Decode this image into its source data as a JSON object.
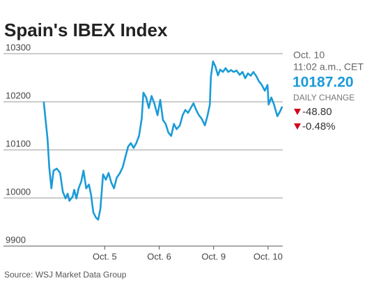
{
  "chart_data": {
    "type": "line",
    "title": "Spain's IBEX Index",
    "source": "Source: WSJ Market Data Group",
    "color": "#1a9bd7",
    "grid": true,
    "ylim": [
      9900,
      10300
    ],
    "yticks": [
      9900,
      10000,
      10100,
      10200,
      10300
    ],
    "xlim": [
      -0.86,
      4.27
    ],
    "xticks": [
      {
        "value": 1,
        "label": "Oct. 5"
      },
      {
        "value": 2,
        "label": "Oct. 6"
      },
      {
        "value": 3,
        "label": "Oct. 9"
      },
      {
        "value": 4,
        "label": "Oct. 10"
      }
    ],
    "x": [
      -0.12,
      -0.05,
      -0.02,
      0.02,
      0.06,
      0.12,
      0.18,
      0.23,
      0.28,
      0.32,
      0.35,
      0.41,
      0.44,
      0.48,
      0.52,
      0.57,
      0.61,
      0.66,
      0.71,
      0.75,
      0.79,
      0.84,
      0.88,
      0.92,
      0.97,
      1.02,
      1.07,
      1.12,
      1.17,
      1.22,
      1.28,
      1.33,
      1.38,
      1.43,
      1.48,
      1.53,
      1.58,
      1.63,
      1.68,
      1.71,
      1.76,
      1.81,
      1.86,
      1.91,
      1.97,
      2.02,
      2.07,
      2.12,
      2.17,
      2.22,
      2.27,
      2.32,
      2.38,
      2.43,
      2.48,
      2.53,
      2.58,
      2.63,
      2.68,
      2.73,
      2.78,
      2.84,
      2.89,
      2.93,
      2.95,
      2.99,
      3.03,
      3.08,
      3.12,
      3.17,
      3.22,
      3.27,
      3.32,
      3.37,
      3.42,
      3.48,
      3.53,
      3.58,
      3.63,
      3.68,
      3.73,
      3.78,
      3.83,
      3.88,
      3.94,
      3.99,
      4.01,
      4.06,
      4.11,
      4.17,
      4.22,
      4.26
    ],
    "series": [
      {
        "name": "IBEX",
        "color": "#1a9bd7",
        "values": [
          10200,
          10122,
          10064,
          10020,
          10057,
          10061,
          10052,
          10013,
          9999,
          10009,
          9994,
          10003,
          10017,
          9999,
          10020,
          10035,
          10057,
          10020,
          10028,
          10006,
          9970,
          9959,
          9955,
          9977,
          10049,
          10038,
          10052,
          10032,
          10020,
          10042,
          10052,
          10064,
          10086,
          10107,
          10114,
          10104,
          10114,
          10129,
          10165,
          10219,
          10209,
          10187,
          10212,
          10197,
          10172,
          10204,
          10162,
          10154,
          10136,
          10129,
          10154,
          10143,
          10151,
          10172,
          10183,
          10177,
          10187,
          10197,
          10183,
          10172,
          10165,
          10151,
          10172,
          10194,
          10252,
          10284,
          10274,
          10255,
          10267,
          10262,
          10270,
          10262,
          10266,
          10262,
          10265,
          10256,
          10262,
          10249,
          10259,
          10254,
          10262,
          10254,
          10243,
          10236,
          10223,
          10235,
          10194,
          10209,
          10194,
          10170,
          10180,
          10190
        ]
      }
    ],
    "panel": {
      "date": "Oct. 10",
      "time": "11:02 a.m., CET",
      "price": "10187.20",
      "change_label": "DAILY CHANGE",
      "change": "-48.80",
      "change_pct": "-0.48%"
    }
  }
}
